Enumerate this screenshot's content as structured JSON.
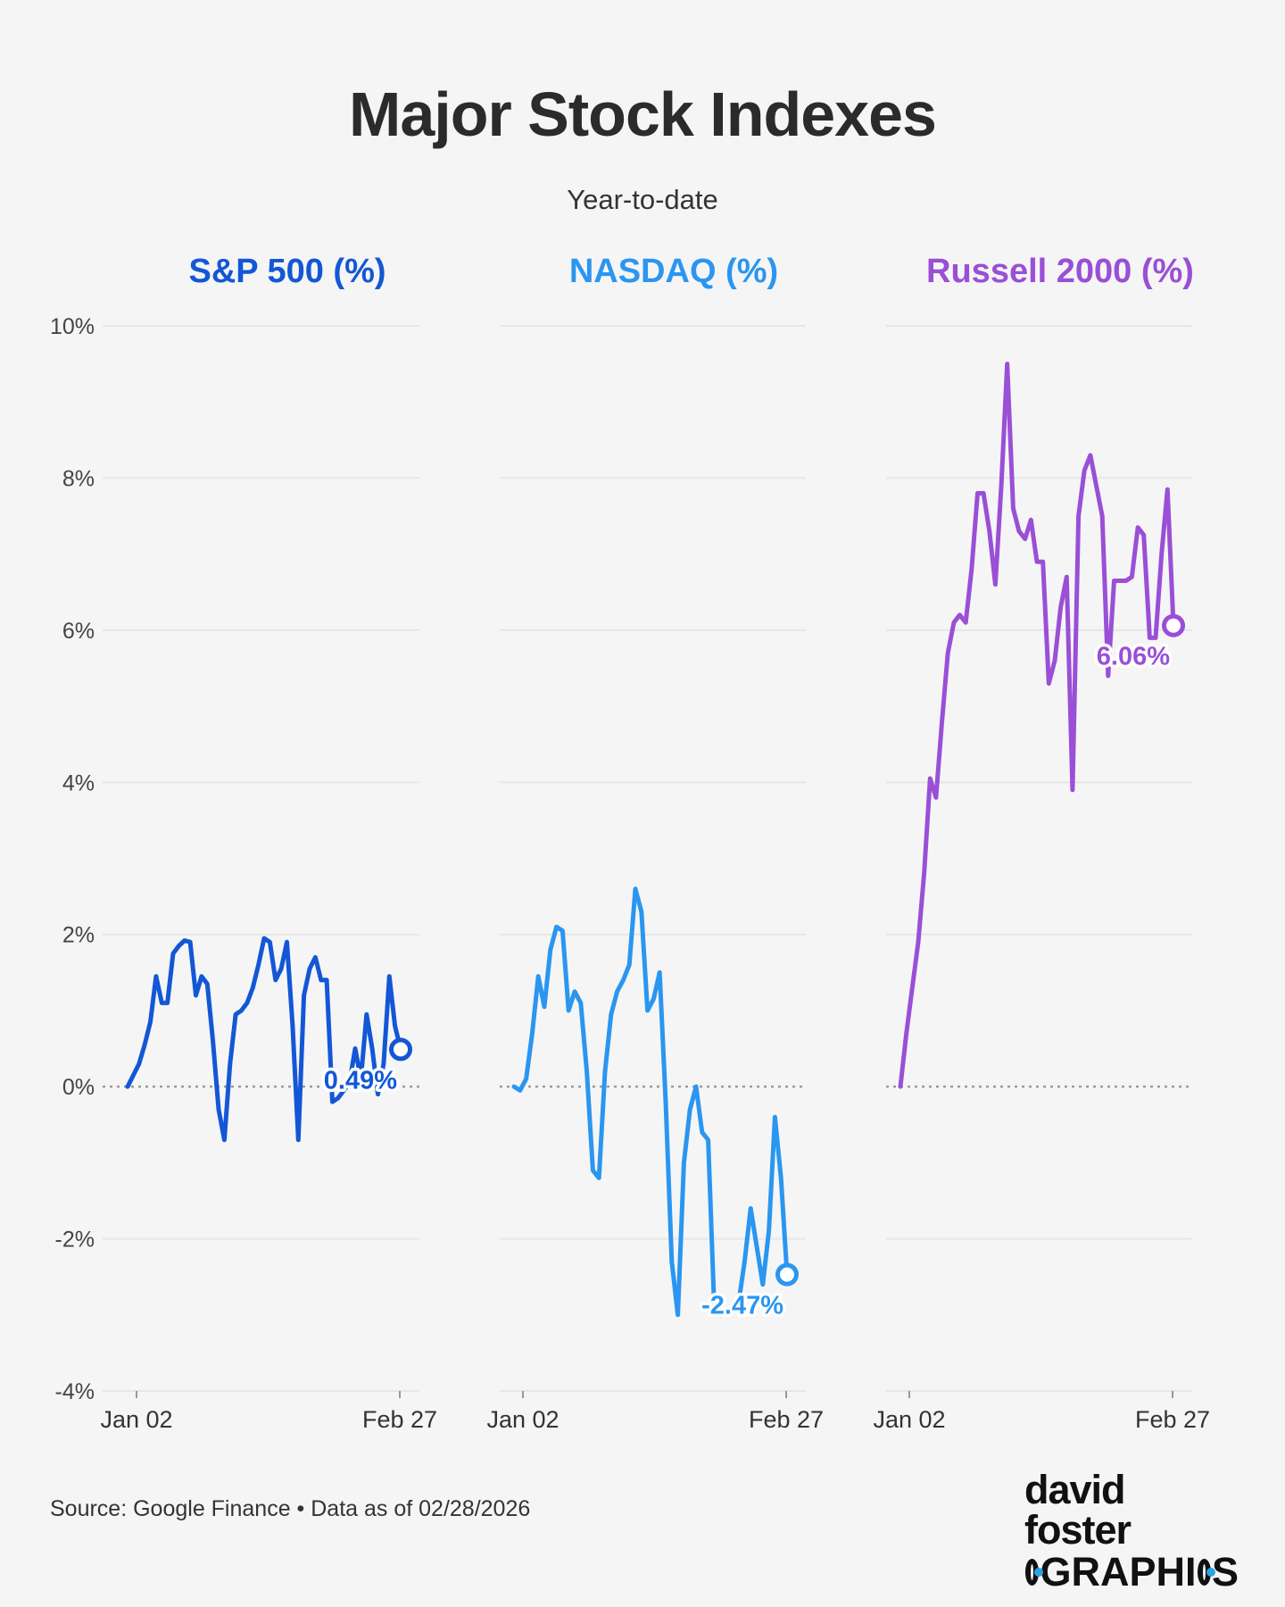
{
  "title": "Major Stock Indexes",
  "subtitle": "Year-to-date",
  "source": "Source: Google Finance • Data as of 02/28/2026",
  "brand": {
    "line1": "david foster",
    "line2a": "",
    "line2b": "GRAPHI",
    "line2c": "S"
  },
  "chart_data": {
    "type": "line",
    "y_ticks": [
      "10%",
      "8%",
      "6%",
      "4%",
      "2%",
      "0%",
      "-2%",
      "-4%"
    ],
    "y_tick_values": [
      10,
      8,
      6,
      4,
      2,
      0,
      -2,
      -4
    ],
    "ylim": [
      -4,
      10
    ],
    "x_tick_labels": [
      "Jan 02",
      "Feb 27"
    ],
    "colors": {
      "sp500": "#1357d6",
      "nasdaq": "#2a96f0",
      "russell": "#9a4fd6"
    },
    "series": [
      {
        "name": "S&P 500 (%)",
        "color": "#1357d6",
        "end_label": "0.49%",
        "end_value": 0.49,
        "values": [
          0,
          0.15,
          0.3,
          0.55,
          0.85,
          1.45,
          1.1,
          1.1,
          1.75,
          1.85,
          1.92,
          1.9,
          1.2,
          1.45,
          1.35,
          0.6,
          -0.3,
          -0.7,
          0.3,
          0.95,
          1.0,
          1.1,
          1.3,
          1.6,
          1.95,
          1.9,
          1.4,
          1.55,
          1.9,
          0.8,
          -0.7,
          1.2,
          1.55,
          1.7,
          1.4,
          1.4,
          -0.2,
          -0.15,
          -0.05,
          0.05,
          0.5,
          0.1,
          0.95,
          0.5,
          -0.1,
          0.3,
          1.45,
          0.8,
          0.49
        ]
      },
      {
        "name": "NASDAQ (%)",
        "color": "#2a96f0",
        "end_label": "-2.47%",
        "end_value": -2.47,
        "values": [
          0,
          -0.05,
          0.1,
          0.7,
          1.45,
          1.05,
          1.8,
          2.1,
          2.05,
          1.0,
          1.25,
          1.1,
          0.2,
          -1.1,
          -1.2,
          0.2,
          0.95,
          1.25,
          1.4,
          1.6,
          2.6,
          2.3,
          1.0,
          1.15,
          1.5,
          -0.2,
          -2.3,
          -3.0,
          -1.0,
          -0.3,
          0.0,
          -0.6,
          -0.7,
          -2.9,
          -3.0,
          -2.95,
          -2.9,
          -2.85,
          -2.3,
          -1.6,
          -2.1,
          -2.6,
          -1.9,
          -0.4,
          -1.2,
          -2.47
        ]
      },
      {
        "name": "Russell 2000 (%)",
        "color": "#9a4fd6",
        "end_label": "6.06%",
        "end_value": 6.06,
        "values": [
          0,
          0.7,
          1.3,
          1.9,
          2.8,
          4.05,
          3.8,
          4.8,
          5.7,
          6.1,
          6.2,
          6.1,
          6.8,
          7.8,
          7.8,
          7.3,
          6.6,
          7.9,
          9.5,
          7.6,
          7.3,
          7.2,
          7.45,
          6.9,
          6.9,
          5.3,
          5.6,
          6.3,
          6.7,
          3.9,
          7.5,
          8.1,
          8.3,
          7.9,
          7.5,
          5.4,
          6.65,
          6.65,
          6.65,
          6.7,
          7.35,
          7.25,
          5.9,
          5.9,
          7.0,
          7.85,
          6.06
        ]
      }
    ]
  }
}
